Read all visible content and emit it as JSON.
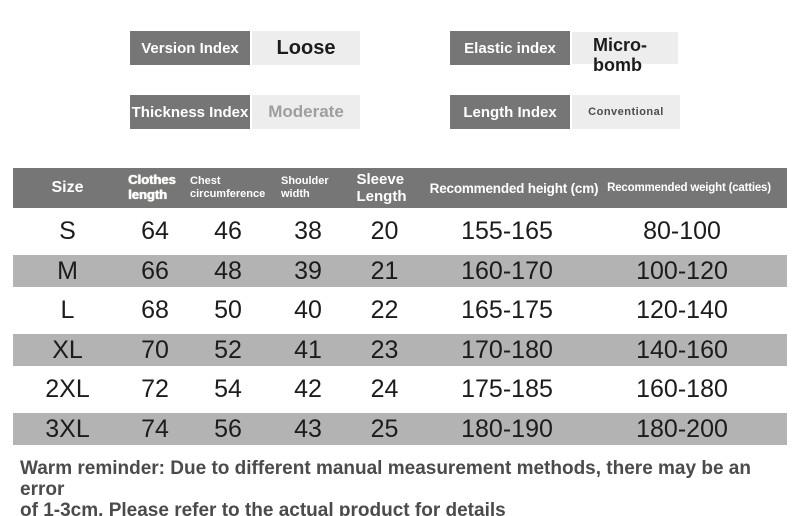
{
  "indices": {
    "version": {
      "label": "Version Index",
      "value": "Loose"
    },
    "elastic": {
      "label": "Elastic index",
      "value": "Micro-bomb"
    },
    "thickness": {
      "label": "Thickness Index",
      "value": "Moderate"
    },
    "length": {
      "label": "Length Index",
      "value": "Conventional"
    }
  },
  "size_table": {
    "columns": [
      "Size",
      "Clothes length",
      "Chest circumference",
      "Shoulder width",
      "Sleeve Length",
      "Recommended height (cm)",
      "Recommended weight (catties)"
    ],
    "rows": [
      {
        "size": "S",
        "clothes_length": "64",
        "chest": "46",
        "shoulder": "38",
        "sleeve": "20",
        "height": "155-165",
        "weight": "80-100"
      },
      {
        "size": "M",
        "clothes_length": "66",
        "chest": "48",
        "shoulder": "39",
        "sleeve": "21",
        "height": "160-170",
        "weight": "100-120"
      },
      {
        "size": "L",
        "clothes_length": "68",
        "chest": "50",
        "shoulder": "40",
        "sleeve": "22",
        "height": "165-175",
        "weight": "120-140"
      },
      {
        "size": "XL",
        "clothes_length": "70",
        "chest": "52",
        "shoulder": "41",
        "sleeve": "23",
        "height": "170-180",
        "weight": "140-160"
      },
      {
        "size": "2XL",
        "clothes_length": "72",
        "chest": "54",
        "shoulder": "42",
        "sleeve": "24",
        "height": "175-185",
        "weight": "160-180"
      },
      {
        "size": "3XL",
        "clothes_length": "74",
        "chest": "56",
        "shoulder": "43",
        "sleeve": "25",
        "height": "180-190",
        "weight": "180-200"
      }
    ]
  },
  "reminder": "Warm reminder: Due to different manual measurement methods, there may be an error\nof 1-3cm. Please refer to the actual product for details",
  "colors": {
    "header_bg": "#767676",
    "stripe_row_bg": "#b3b3b3",
    "value_box_bg": "#ededed",
    "dark_text": "#1c1c1c",
    "muted_value_text": "#9e9e9e",
    "reminder_text": "#4b4b4b"
  }
}
